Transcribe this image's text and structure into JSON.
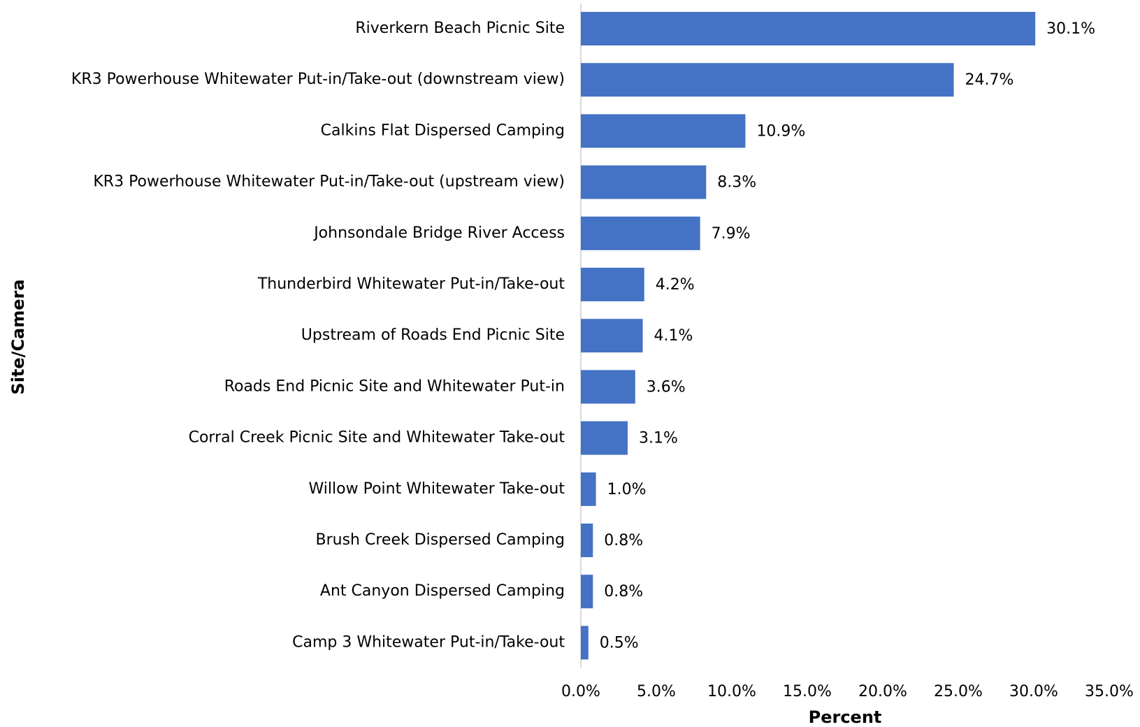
{
  "chart_data": {
    "type": "bar",
    "orientation": "horizontal",
    "x_label": "Percent",
    "y_label": "Site/Camera",
    "categories": [
      "Riverkern Beach Picnic Site",
      "KR3 Powerhouse Whitewater Put-in/Take-out (downstream view)",
      "Calkins Flat Dispersed Camping",
      "KR3 Powerhouse Whitewater Put-in/Take-out (upstream view)",
      "Johnsondale Bridge River Access",
      "Thunderbird Whitewater Put-in/Take-out",
      "Upstream of Roads End Picnic Site",
      "Roads End Picnic Site and Whitewater Put-in",
      "Corral Creek Picnic Site and Whitewater Take-out",
      "Willow Point Whitewater Take-out",
      "Brush Creek Dispersed Camping",
      "Ant Canyon Dispersed Camping",
      "Camp 3 Whitewater Put-in/Take-out"
    ],
    "values": [
      30.1,
      24.7,
      10.9,
      8.3,
      7.9,
      4.2,
      4.1,
      3.6,
      3.1,
      1.0,
      0.8,
      0.8,
      0.5
    ],
    "value_labels": [
      "30.1%",
      "24.7%",
      "10.9%",
      "8.3%",
      "7.9%",
      "4.2%",
      "4.1%",
      "3.6%",
      "3.1%",
      "1.0%",
      "0.8%",
      "0.8%",
      "0.5%"
    ],
    "color": "#4472c4",
    "xlim": [
      0,
      35
    ],
    "xticks": [
      {
        "value": 0,
        "label": "0.0%"
      },
      {
        "value": 5,
        "label": "5.0%"
      },
      {
        "value": 10,
        "label": "10.0%"
      },
      {
        "value": 15,
        "label": "15.0%"
      },
      {
        "value": 20,
        "label": "20.0%"
      },
      {
        "value": 25,
        "label": "25.0%"
      },
      {
        "value": 30,
        "label": "30.0%"
      },
      {
        "value": 35,
        "label": "35.0%"
      }
    ],
    "grid": false
  }
}
